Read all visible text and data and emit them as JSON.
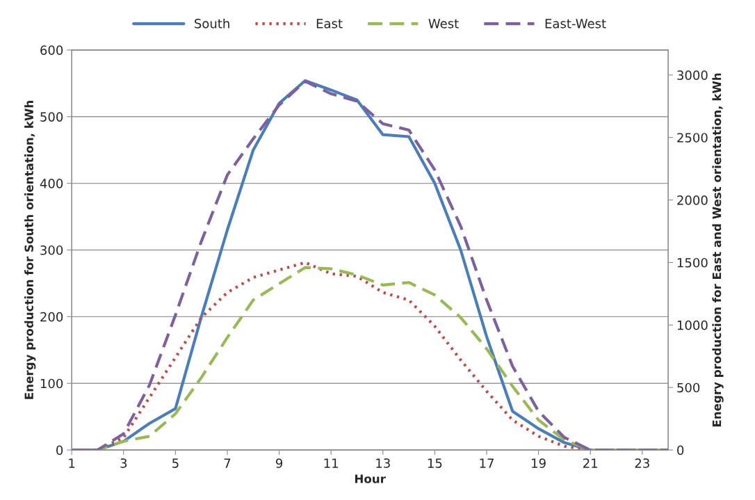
{
  "chart_data": {
    "type": "line",
    "xlabel": "Hour",
    "ylabel": "Energy production for South orientation, kWh",
    "y2label": "Enegry production for East and West orientation, kWh",
    "x": [
      1,
      2,
      3,
      4,
      5,
      6,
      7,
      8,
      9,
      10,
      11,
      12,
      13,
      14,
      15,
      16,
      17,
      18,
      19,
      20,
      21,
      22,
      23,
      24
    ],
    "xlim": [
      1,
      24
    ],
    "xticks": [
      1,
      3,
      5,
      7,
      9,
      11,
      13,
      15,
      17,
      19,
      21,
      23
    ],
    "ylim": [
      0,
      600
    ],
    "yticks": [
      0,
      100,
      200,
      300,
      400,
      500,
      600
    ],
    "y2lim": [
      0,
      3200
    ],
    "y2ticks": [
      0,
      500,
      1000,
      1500,
      2000,
      2500,
      3000
    ],
    "grid": "y",
    "legend": "top",
    "marker": "none",
    "series": [
      {
        "name": "South",
        "color": "#4a7ebb",
        "line_style": "solid",
        "values": [
          0,
          0,
          13,
          40,
          62,
          200,
          330,
          450,
          520,
          554,
          540,
          525,
          473,
          470,
          400,
          300,
          170,
          58,
          32,
          11,
          0,
          0,
          0,
          0
        ]
      },
      {
        "name": "East",
        "color": "#be4b48",
        "line_style": "dotted",
        "axis": "y2",
        "values": [
          0,
          0,
          100,
          420,
          740,
          1060,
          1260,
          1380,
          1440,
          1500,
          1410,
          1390,
          1260,
          1200,
          990,
          720,
          470,
          240,
          110,
          30,
          0,
          0,
          0,
          0
        ]
      },
      {
        "name": "West",
        "color": "#98b954",
        "line_style": "dashed",
        "axis": "y2",
        "values": [
          0,
          0,
          70,
          110,
          290,
          580,
          900,
          1200,
          1330,
          1460,
          1450,
          1400,
          1320,
          1340,
          1240,
          1060,
          810,
          510,
          240,
          80,
          0,
          0,
          0,
          0
        ]
      },
      {
        "name": "East-West",
        "color": "#7d60a0",
        "line_style": "dashed",
        "axis": "y2",
        "values": [
          0,
          0,
          130,
          520,
          1080,
          1670,
          2200,
          2490,
          2760,
          2950,
          2850,
          2790,
          2610,
          2560,
          2240,
          1790,
          1200,
          670,
          310,
          100,
          0,
          0,
          0,
          0
        ]
      }
    ]
  }
}
